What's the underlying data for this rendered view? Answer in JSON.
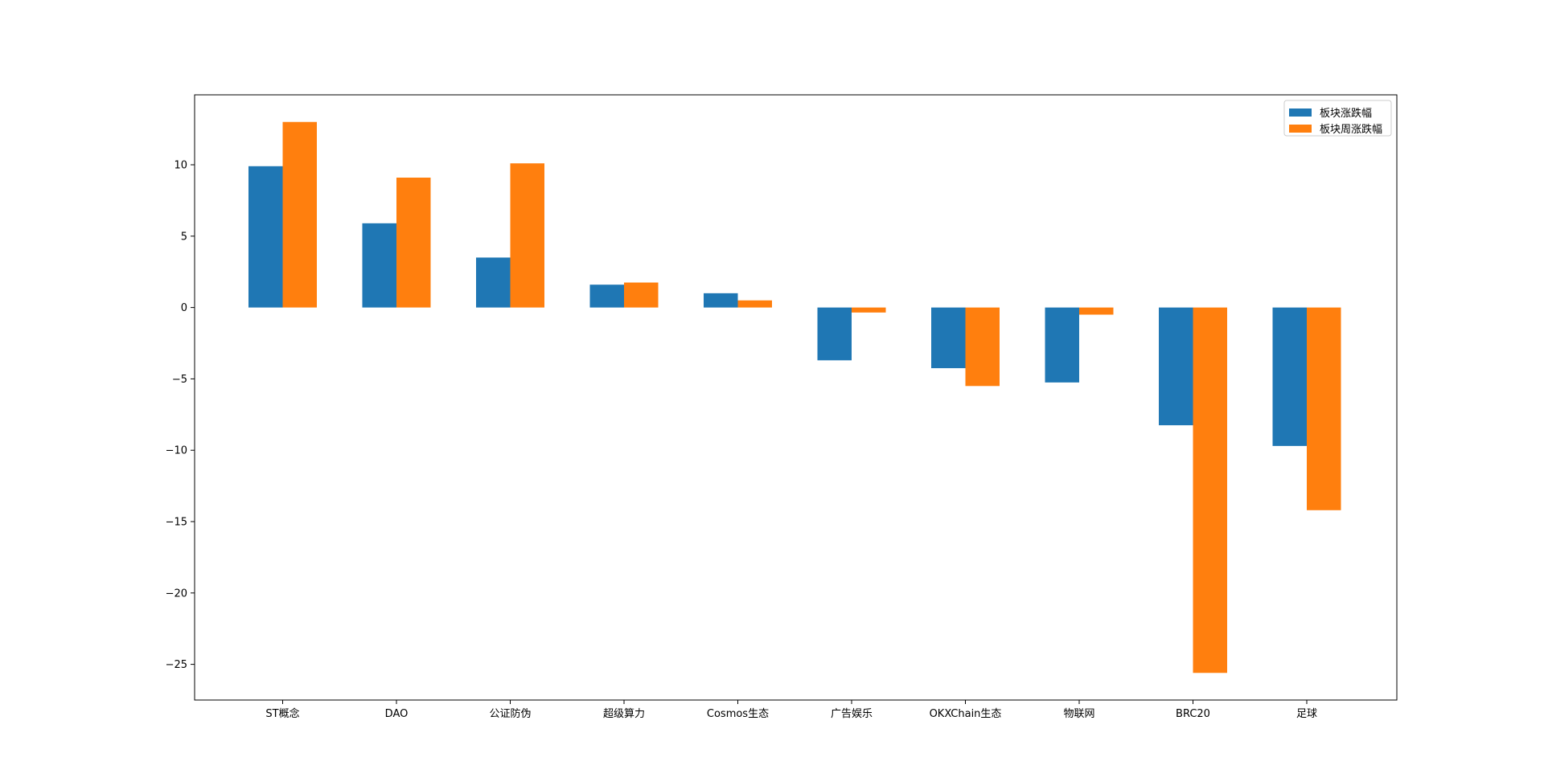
{
  "chart_data": {
    "type": "bar",
    "categories": [
      "ST概念",
      "DAO",
      "公证防伪",
      "超级算力",
      "Cosmos生态",
      "广告娱乐",
      "OKXChain生态",
      "物联网",
      "BRC20",
      "足球"
    ],
    "series": [
      {
        "name": "板块涨跌幅",
        "color": "#1f77b4",
        "values": [
          9.9,
          5.9,
          3.5,
          1.6,
          1.0,
          -3.7,
          -4.25,
          -5.25,
          -8.25,
          -9.7
        ]
      },
      {
        "name": "板块周涨跌幅",
        "color": "#ff7f0e",
        "values": [
          13.0,
          9.1,
          10.1,
          1.75,
          0.5,
          -0.35,
          -5.5,
          -0.5,
          -25.6,
          -14.2
        ]
      }
    ],
    "y_ticks": [
      10,
      5,
      0,
      -5,
      -10,
      -15,
      -20,
      -25
    ],
    "y_tick_labels": [
      "10",
      "5",
      "0",
      "−5",
      "−10",
      "−15",
      "−20",
      "−25"
    ],
    "ylim": [
      -27.5,
      14.9
    ],
    "title": "",
    "xlabel": "",
    "ylabel": "",
    "grid": false,
    "legend_position": "top-right"
  }
}
